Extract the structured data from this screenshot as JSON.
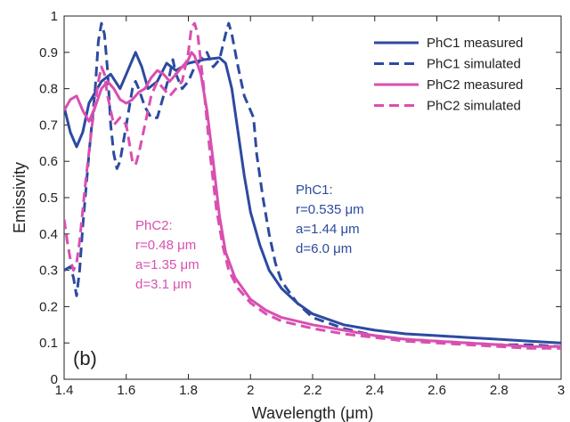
{
  "chart_data": {
    "type": "line",
    "panel_label": "(b)",
    "xlabel": "Wavelength (μm)",
    "ylabel": "Emissivity",
    "xlim": [
      1.4,
      3.0
    ],
    "ylim": [
      0,
      1.0
    ],
    "x_ticks": [
      1.4,
      1.6,
      1.8,
      2.0,
      2.2,
      2.4,
      2.6,
      2.8,
      3.0
    ],
    "x_tick_labels": [
      "1.4",
      "1.6",
      "1.8",
      "2",
      "2.2",
      "2.4",
      "2.6",
      "2.8",
      "3"
    ],
    "y_ticks": [
      0,
      0.1,
      0.2,
      0.3,
      0.4,
      0.5,
      0.6,
      0.7,
      0.8,
      0.9,
      1.0
    ],
    "y_tick_labels": [
      "0",
      "0.1",
      "0.2",
      "0.3",
      "0.4",
      "0.5",
      "0.6",
      "0.7",
      "0.8",
      "0.9",
      "1"
    ],
    "grid": false,
    "legend_position": "top-right",
    "colors": {
      "phc1": "#2c4aa0",
      "phc2": "#d94fb0"
    },
    "series": [
      {
        "name": "PhC1 measured",
        "color": "#2c4aa0",
        "style": "solid",
        "points": [
          [
            1.4,
            0.75
          ],
          [
            1.42,
            0.68
          ],
          [
            1.44,
            0.64
          ],
          [
            1.46,
            0.68
          ],
          [
            1.48,
            0.76
          ],
          [
            1.5,
            0.79
          ],
          [
            1.52,
            0.82
          ],
          [
            1.55,
            0.84
          ],
          [
            1.58,
            0.8
          ],
          [
            1.6,
            0.84
          ],
          [
            1.62,
            0.88
          ],
          [
            1.63,
            0.9
          ],
          [
            1.65,
            0.86
          ],
          [
            1.67,
            0.8
          ],
          [
            1.7,
            0.82
          ],
          [
            1.73,
            0.87
          ],
          [
            1.76,
            0.85
          ],
          [
            1.8,
            0.87
          ],
          [
            1.85,
            0.88
          ],
          [
            1.9,
            0.885
          ],
          [
            1.92,
            0.87
          ],
          [
            1.94,
            0.8
          ],
          [
            1.96,
            0.68
          ],
          [
            1.98,
            0.56
          ],
          [
            2.0,
            0.46
          ],
          [
            2.03,
            0.37
          ],
          [
            2.06,
            0.3
          ],
          [
            2.1,
            0.25
          ],
          [
            2.15,
            0.21
          ],
          [
            2.2,
            0.18
          ],
          [
            2.3,
            0.15
          ],
          [
            2.4,
            0.135
          ],
          [
            2.5,
            0.125
          ],
          [
            2.6,
            0.12
          ],
          [
            2.7,
            0.115
          ],
          [
            2.8,
            0.11
          ],
          [
            2.9,
            0.105
          ],
          [
            3.0,
            0.1
          ]
        ]
      },
      {
        "name": "PhC1 simulated",
        "color": "#2c4aa0",
        "style": "dashed",
        "points": [
          [
            1.4,
            0.3
          ],
          [
            1.42,
            0.31
          ],
          [
            1.43,
            0.28
          ],
          [
            1.44,
            0.23
          ],
          [
            1.45,
            0.3
          ],
          [
            1.46,
            0.42
          ],
          [
            1.48,
            0.62
          ],
          [
            1.5,
            0.8
          ],
          [
            1.51,
            0.93
          ],
          [
            1.52,
            0.98
          ],
          [
            1.53,
            0.95
          ],
          [
            1.54,
            0.85
          ],
          [
            1.55,
            0.7
          ],
          [
            1.56,
            0.62
          ],
          [
            1.57,
            0.58
          ],
          [
            1.58,
            0.6
          ],
          [
            1.59,
            0.65
          ],
          [
            1.6,
            0.7
          ],
          [
            1.62,
            0.8
          ],
          [
            1.63,
            0.82
          ],
          [
            1.64,
            0.8
          ],
          [
            1.66,
            0.75
          ],
          [
            1.68,
            0.72
          ],
          [
            1.7,
            0.72
          ],
          [
            1.72,
            0.78
          ],
          [
            1.74,
            0.84
          ],
          [
            1.75,
            0.88
          ],
          [
            1.76,
            0.84
          ],
          [
            1.78,
            0.8
          ],
          [
            1.8,
            0.82
          ],
          [
            1.82,
            0.86
          ],
          [
            1.84,
            0.88
          ],
          [
            1.86,
            0.9
          ],
          [
            1.88,
            0.86
          ],
          [
            1.9,
            0.88
          ],
          [
            1.92,
            0.95
          ],
          [
            1.93,
            0.98
          ],
          [
            1.94,
            0.95
          ],
          [
            1.96,
            0.86
          ],
          [
            1.98,
            0.78
          ],
          [
            2.0,
            0.74
          ],
          [
            2.01,
            0.72
          ],
          [
            2.02,
            0.62
          ],
          [
            2.04,
            0.5
          ],
          [
            2.06,
            0.4
          ],
          [
            2.08,
            0.32
          ],
          [
            2.1,
            0.27
          ],
          [
            2.15,
            0.21
          ],
          [
            2.2,
            0.17
          ],
          [
            2.3,
            0.14
          ],
          [
            2.4,
            0.12
          ],
          [
            2.5,
            0.11
          ],
          [
            2.6,
            0.105
          ],
          [
            2.7,
            0.1
          ],
          [
            2.8,
            0.095
          ],
          [
            2.9,
            0.095
          ],
          [
            3.0,
            0.09
          ]
        ]
      },
      {
        "name": "PhC2 measured",
        "color": "#d94fb0",
        "style": "solid",
        "points": [
          [
            1.4,
            0.74
          ],
          [
            1.42,
            0.77
          ],
          [
            1.44,
            0.78
          ],
          [
            1.46,
            0.74
          ],
          [
            1.48,
            0.71
          ],
          [
            1.5,
            0.75
          ],
          [
            1.52,
            0.8
          ],
          [
            1.54,
            0.82
          ],
          [
            1.56,
            0.8
          ],
          [
            1.58,
            0.77
          ],
          [
            1.6,
            0.76
          ],
          [
            1.62,
            0.77
          ],
          [
            1.64,
            0.79
          ],
          [
            1.66,
            0.8
          ],
          [
            1.68,
            0.83
          ],
          [
            1.7,
            0.85
          ],
          [
            1.72,
            0.84
          ],
          [
            1.74,
            0.82
          ],
          [
            1.76,
            0.84
          ],
          [
            1.78,
            0.86
          ],
          [
            1.8,
            0.88
          ],
          [
            1.81,
            0.9
          ],
          [
            1.82,
            0.89
          ],
          [
            1.84,
            0.84
          ],
          [
            1.86,
            0.74
          ],
          [
            1.88,
            0.6
          ],
          [
            1.9,
            0.45
          ],
          [
            1.92,
            0.35
          ],
          [
            1.95,
            0.28
          ],
          [
            2.0,
            0.22
          ],
          [
            2.05,
            0.19
          ],
          [
            2.1,
            0.17
          ],
          [
            2.2,
            0.15
          ],
          [
            2.3,
            0.135
          ],
          [
            2.4,
            0.12
          ],
          [
            2.5,
            0.11
          ],
          [
            2.6,
            0.105
          ],
          [
            2.7,
            0.1
          ],
          [
            2.8,
            0.095
          ],
          [
            2.9,
            0.09
          ],
          [
            3.0,
            0.09
          ]
        ]
      },
      {
        "name": "PhC2 simulated",
        "color": "#d94fb0",
        "style": "dashed",
        "points": [
          [
            1.4,
            0.44
          ],
          [
            1.41,
            0.38
          ],
          [
            1.42,
            0.33
          ],
          [
            1.43,
            0.3
          ],
          [
            1.44,
            0.32
          ],
          [
            1.45,
            0.38
          ],
          [
            1.47,
            0.55
          ],
          [
            1.49,
            0.7
          ],
          [
            1.51,
            0.82
          ],
          [
            1.52,
            0.86
          ],
          [
            1.53,
            0.84
          ],
          [
            1.54,
            0.78
          ],
          [
            1.56,
            0.7
          ],
          [
            1.58,
            0.72
          ],
          [
            1.6,
            0.7
          ],
          [
            1.62,
            0.6
          ],
          [
            1.63,
            0.59
          ],
          [
            1.64,
            0.62
          ],
          [
            1.66,
            0.7
          ],
          [
            1.68,
            0.78
          ],
          [
            1.7,
            0.82
          ],
          [
            1.72,
            0.8
          ],
          [
            1.74,
            0.78
          ],
          [
            1.76,
            0.8
          ],
          [
            1.78,
            0.82
          ],
          [
            1.8,
            0.9
          ],
          [
            1.81,
            0.97
          ],
          [
            1.82,
            0.98
          ],
          [
            1.83,
            0.95
          ],
          [
            1.85,
            0.8
          ],
          [
            1.87,
            0.62
          ],
          [
            1.89,
            0.47
          ],
          [
            1.91,
            0.37
          ],
          [
            1.93,
            0.3
          ],
          [
            1.96,
            0.25
          ],
          [
            2.0,
            0.21
          ],
          [
            2.05,
            0.18
          ],
          [
            2.1,
            0.16
          ],
          [
            2.2,
            0.14
          ],
          [
            2.3,
            0.125
          ],
          [
            2.4,
            0.115
          ],
          [
            2.5,
            0.105
          ],
          [
            2.6,
            0.1
          ],
          [
            2.7,
            0.095
          ],
          [
            2.8,
            0.09
          ],
          [
            2.9,
            0.085
          ],
          [
            3.0,
            0.085
          ]
        ]
      }
    ],
    "annotations": [
      {
        "id": "phc1",
        "color": "#2c4aa0",
        "lines": [
          "PhC1:",
          "r=0.535 μm",
          "a=1.44 μm",
          "d=6.0 μm"
        ]
      },
      {
        "id": "phc2",
        "color": "#d94fb0",
        "lines": [
          "PhC2:",
          "r=0.48 μm",
          "a=1.35 μm",
          "d=3.1 μm"
        ]
      }
    ]
  }
}
